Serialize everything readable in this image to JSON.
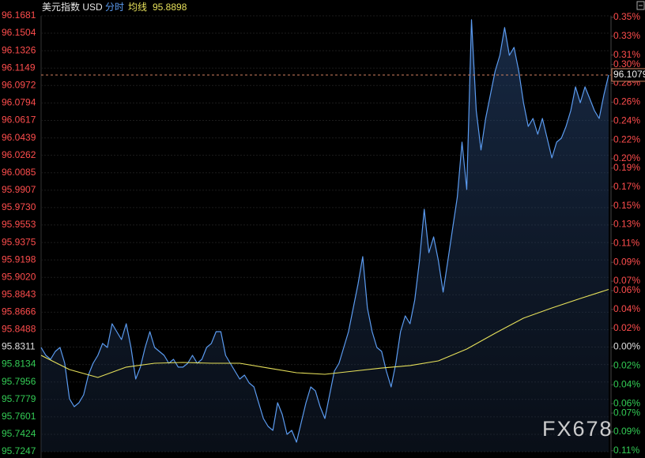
{
  "chart_data": {
    "type": "line",
    "title": "美元指数 USD",
    "watermark": "FX678",
    "grid": true,
    "ylim": [
      95.7247,
      96.1681
    ],
    "yticks": [
      96.1681,
      96.1504,
      96.1326,
      96.1149,
      96.0972,
      96.0794,
      96.0617,
      96.0439,
      96.0262,
      96.0085,
      95.9907,
      {
        "value": 95.973,
        "label": "95.9730"
      },
      95.9553,
      95.9375,
      95.9198,
      {
        "value": 95.902,
        "label": "95.9020"
      },
      95.8843,
      95.8666,
      95.8488,
      95.8311,
      95.8134,
      95.7956,
      95.7779,
      95.7601,
      95.7424,
      95.7247
    ],
    "y2lim": [
      -0.111,
      0.3517
    ],
    "y2ticks": [
      {
        "value": 0.35,
        "label": "0.35%"
      },
      {
        "value": 0.33,
        "label": "0.33%"
      },
      {
        "value": 0.31,
        "label": "0.31%"
      },
      {
        "value": 0.3,
        "label": "0.30%"
      },
      {
        "value": 0.28,
        "label": "0.28%"
      },
      {
        "value": 0.26,
        "label": "0.26%"
      },
      {
        "value": 0.24,
        "label": "0.24%"
      },
      {
        "value": 0.22,
        "label": "0.22%"
      },
      {
        "value": 0.2,
        "label": "0.20%"
      },
      {
        "value": 0.19,
        "label": "0.19%"
      },
      {
        "value": 0.17,
        "label": "0.17%"
      },
      {
        "value": 0.15,
        "label": "0.15%"
      },
      {
        "value": 0.13,
        "label": "0.13%"
      },
      {
        "value": 0.11,
        "label": "0.11%"
      },
      {
        "value": 0.09,
        "label": "0.09%"
      },
      {
        "value": 0.07,
        "label": "0.07%"
      },
      {
        "value": 0.06,
        "label": "0.06%"
      },
      {
        "value": 0.04,
        "label": "0.04%"
      },
      {
        "value": 0.02,
        "label": "0.02%"
      },
      {
        "value": 0,
        "label": "0.00%"
      },
      {
        "value": -0.02,
        "label": "0.02%"
      },
      {
        "value": -0.04,
        "label": "0.04%"
      },
      {
        "value": -0.06,
        "label": "0.06%"
      },
      {
        "value": -0.07,
        "label": "0.07%"
      },
      {
        "value": -0.09,
        "label": "0.09%"
      },
      {
        "value": -0.11,
        "label": "0.11%"
      }
    ],
    "series": [
      {
        "name": "分时",
        "color": "#5b9bf0",
        "values": [
          95.8307,
          95.8227,
          95.8187,
          95.8267,
          95.8307,
          95.8147,
          95.7785,
          95.7705,
          95.7745,
          95.7825,
          95.8026,
          95.8147,
          95.8227,
          95.8348,
          95.8307,
          95.8548,
          95.8468,
          95.8388,
          95.8548,
          95.8307,
          95.7986,
          95.8107,
          95.8307,
          95.8468,
          95.8307,
          95.8267,
          95.8227,
          95.8147,
          95.8187,
          95.8107,
          95.8107,
          95.8147,
          95.8227,
          95.8147,
          95.8187,
          95.8307,
          95.8348,
          95.8468,
          95.8468,
          95.8227,
          95.8147,
          95.8066,
          95.7986,
          95.8026,
          95.7946,
          95.7906,
          95.7745,
          95.7584,
          95.7504,
          95.7464,
          95.7745,
          95.7625,
          95.7424,
          95.7464,
          95.7343,
          95.7544,
          95.7745,
          95.7906,
          95.7866,
          95.7705,
          95.7584,
          95.7825,
          95.8066,
          95.8147,
          95.8307,
          95.8468,
          95.8709,
          95.895,
          95.9231,
          95.8709,
          95.8468,
          95.8307,
          95.8267,
          95.8066,
          95.7906,
          95.8147,
          95.8468,
          95.8629,
          95.8548,
          95.8789,
          95.9191,
          95.9713,
          95.9271,
          95.9432,
          95.9191,
          95.887,
          95.9191,
          95.9512,
          95.9834,
          96.0396,
          95.9914,
          96.1641,
          96.0717,
          96.0316,
          96.0637,
          96.0878,
          96.1119,
          96.1279,
          96.1561,
          96.1279,
          96.136,
          96.1119,
          96.0797,
          96.0556,
          96.0637,
          96.0476,
          96.0637,
          96.0436,
          96.0235,
          96.0396,
          96.0436,
          96.0556,
          96.0717,
          96.0958,
          96.0797,
          96.0958,
          96.0838,
          96.0717,
          96.0637,
          96.0878,
          96.1079
        ]
      },
      {
        "name": "均线",
        "color": "#e6e05a",
        "values": [
          95.8227,
          95.8082,
          95.8002,
          95.8107,
          95.8147,
          95.8155,
          95.8147,
          95.8147,
          95.8098,
          95.805,
          95.8034,
          95.8066,
          95.8098,
          95.8123,
          95.8171,
          95.8291,
          95.8452,
          95.8605,
          95.8709,
          95.8805,
          95.8898
        ]
      }
    ],
    "current_line_color": "#d08060"
  }
}
